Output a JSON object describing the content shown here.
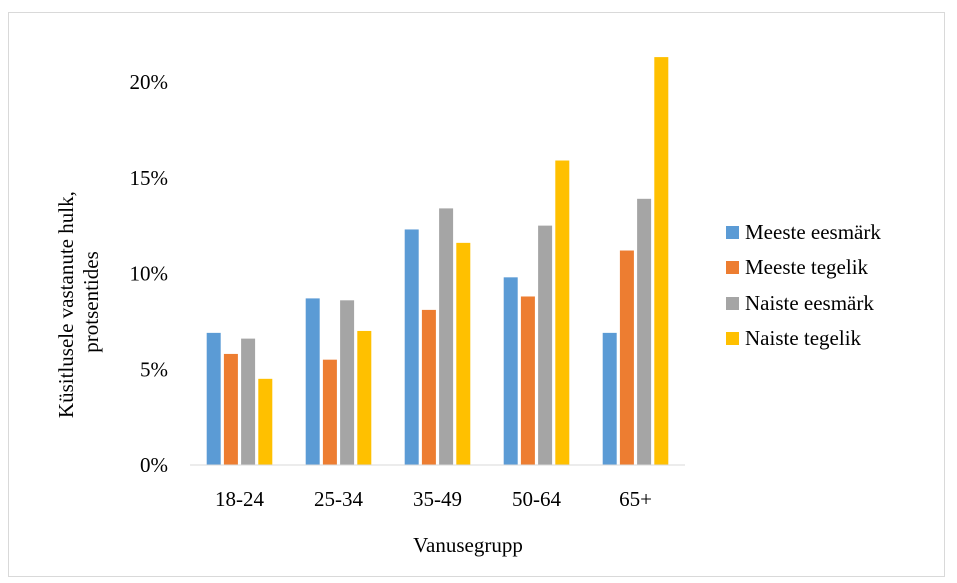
{
  "chart_data": {
    "type": "bar",
    "categories": [
      "18-24",
      "25-34",
      "35-49",
      "50-64",
      "65+"
    ],
    "series": [
      {
        "name": "Meeste eesmärk",
        "color": "#5b9bd5",
        "values": [
          6.9,
          8.7,
          12.3,
          9.8,
          6.9
        ]
      },
      {
        "name": "Meeste tegelik",
        "color": "#ed7d31",
        "values": [
          5.8,
          5.5,
          8.1,
          8.8,
          11.2
        ]
      },
      {
        "name": "Naiste eesmärk",
        "color": "#a5a5a5",
        "values": [
          6.6,
          8.6,
          13.4,
          12.5,
          13.9
        ]
      },
      {
        "name": "Naiste tegelik",
        "color": "#ffc000",
        "values": [
          4.5,
          7.0,
          11.6,
          15.9,
          21.3
        ]
      }
    ],
    "xlabel": "Vanusegrupp",
    "ylabel": [
      "Küsitlusele vastanute hulk,",
      "protsentides"
    ],
    "ylim": [
      0,
      20
    ],
    "yticks": [
      "0%",
      "5%",
      "10%",
      "15%",
      "20%"
    ],
    "ytick_values": [
      0,
      5,
      10,
      15,
      20
    ],
    "grid": false,
    "legend_position": "right"
  }
}
